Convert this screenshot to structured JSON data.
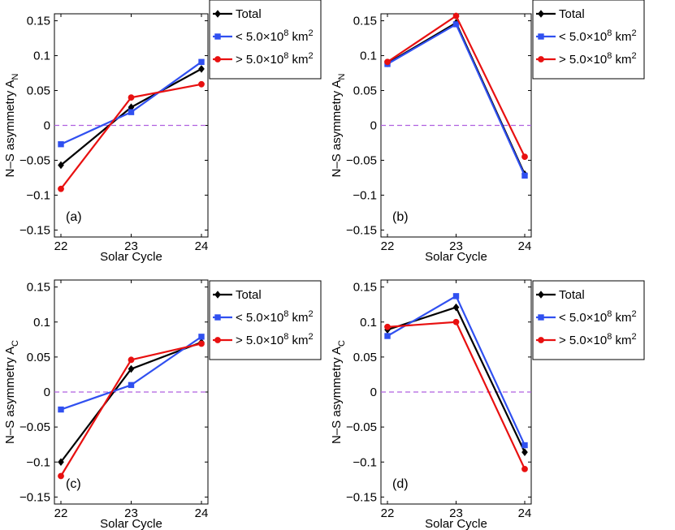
{
  "chart_data": [
    {
      "type": "line",
      "panel_label": "(a)",
      "xlabel": "Solar Cycle",
      "ylabel": "N–S asymmetry A",
      "ylabel_subscript": "N",
      "categories": [
        "22",
        "23",
        "24"
      ],
      "x": [
        22,
        23,
        24
      ],
      "xlim": [
        22,
        24
      ],
      "ylim": [
        -0.16,
        0.16
      ],
      "yticks": [
        -0.15,
        -0.1,
        -0.05,
        0,
        0.05,
        0.1,
        0.15
      ],
      "ytick_labels": [
        "-0.15",
        "-0.1",
        "-0.05",
        "0",
        "0.05",
        "0.1",
        "0.15"
      ],
      "reference_line": 0,
      "series": [
        {
          "name": "Total",
          "color": "#000000",
          "marker": "diamond",
          "values": [
            -0.057,
            0.026,
            0.081
          ]
        },
        {
          "name": "< 5.0×10^8 km^2",
          "color": "#3050f0",
          "marker": "square",
          "values": [
            -0.027,
            0.019,
            0.091
          ]
        },
        {
          "name": "> 5.0×10^8 km^2",
          "color": "#e81010",
          "marker": "circle",
          "values": [
            -0.091,
            0.04,
            0.059
          ]
        }
      ]
    },
    {
      "type": "line",
      "panel_label": "(b)",
      "xlabel": "Solar Cycle",
      "ylabel": "N–S asymmetry A",
      "ylabel_subscript": "N",
      "categories": [
        "22",
        "23",
        "24"
      ],
      "x": [
        22,
        23,
        24
      ],
      "xlim": [
        22,
        24
      ],
      "ylim": [
        -0.16,
        0.16
      ],
      "yticks": [
        -0.15,
        -0.1,
        -0.05,
        0,
        0.05,
        0.1,
        0.15
      ],
      "ytick_labels": [
        "-0.15",
        "-0.1",
        "-0.05",
        "0",
        "0.05",
        "0.1",
        "0.15"
      ],
      "reference_line": 0,
      "series": [
        {
          "name": "Total",
          "color": "#000000",
          "marker": "diamond",
          "values": [
            0.089,
            0.147,
            -0.07
          ]
        },
        {
          "name": "< 5.0×10^8 km^2",
          "color": "#3050f0",
          "marker": "square",
          "values": [
            0.088,
            0.145,
            -0.072
          ]
        },
        {
          "name": "> 5.0×10^8 km^2",
          "color": "#e81010",
          "marker": "circle",
          "values": [
            0.091,
            0.157,
            -0.045
          ]
        }
      ]
    },
    {
      "type": "line",
      "panel_label": "(c)",
      "xlabel": "Solar Cycle",
      "ylabel": "N–S asymmetry A",
      "ylabel_subscript": "C",
      "categories": [
        "22",
        "23",
        "24"
      ],
      "x": [
        22,
        23,
        24
      ],
      "xlim": [
        22,
        24
      ],
      "ylim": [
        -0.16,
        0.16
      ],
      "yticks": [
        -0.15,
        -0.1,
        -0.05,
        0,
        0.05,
        0.1,
        0.15
      ],
      "ytick_labels": [
        "-0.15",
        "-0.1",
        "-0.05",
        "0",
        "0.05",
        "0.1",
        "0.15"
      ],
      "reference_line": 0,
      "series": [
        {
          "name": "Total",
          "color": "#000000",
          "marker": "diamond",
          "values": [
            -0.1,
            0.033,
            0.071
          ]
        },
        {
          "name": "< 5.0×10^8 km^2",
          "color": "#3050f0",
          "marker": "square",
          "values": [
            -0.025,
            0.01,
            0.079
          ]
        },
        {
          "name": "> 5.0×10^8 km^2",
          "color": "#e81010",
          "marker": "circle",
          "values": [
            -0.12,
            0.046,
            0.069
          ]
        }
      ]
    },
    {
      "type": "line",
      "panel_label": "(d)",
      "xlabel": "Solar Cycle",
      "ylabel": "N–S asymmetry A",
      "ylabel_subscript": "C",
      "categories": [
        "22",
        "23",
        "24"
      ],
      "x": [
        22,
        23,
        24
      ],
      "xlim": [
        22,
        24
      ],
      "ylim": [
        -0.16,
        0.16
      ],
      "yticks": [
        -0.15,
        -0.1,
        -0.05,
        0,
        0.05,
        0.1,
        0.15
      ],
      "ytick_labels": [
        "-0.15",
        "-0.1",
        "-0.05",
        "0",
        "0.05",
        "0.1",
        "0.15"
      ],
      "reference_line": 0,
      "series": [
        {
          "name": "Total",
          "color": "#000000",
          "marker": "diamond",
          "values": [
            0.089,
            0.121,
            -0.086
          ]
        },
        {
          "name": "< 5.0×10^8 km^2",
          "color": "#3050f0",
          "marker": "square",
          "values": [
            0.08,
            0.137,
            -0.076
          ]
        },
        {
          "name": "> 5.0×10^8 km^2",
          "color": "#e81010",
          "marker": "circle",
          "values": [
            0.093,
            0.1,
            -0.11
          ]
        }
      ]
    }
  ],
  "legend": {
    "entries": [
      {
        "label": "Total",
        "color": "#000000",
        "marker": "diamond"
      },
      {
        "prefix": "< 5.0×10",
        "exponent": "8",
        "unit": " km",
        "unit_exponent": "2",
        "color": "#3050f0",
        "marker": "square"
      },
      {
        "prefix": "> 5.0×10",
        "exponent": "8",
        "unit": " km",
        "unit_exponent": "2",
        "color": "#e81010",
        "marker": "circle"
      }
    ]
  },
  "zero_line_color": "#b060e0"
}
